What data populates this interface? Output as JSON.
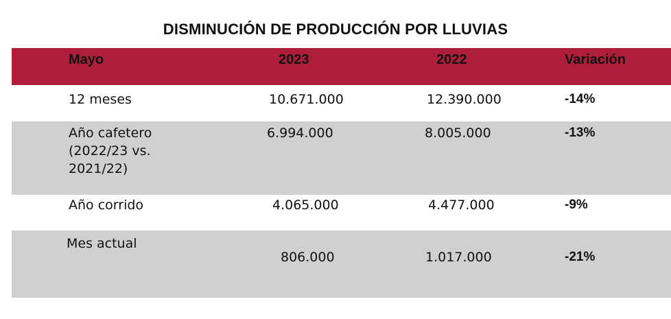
{
  "title": "DISMINUCIÓN DE PRODUCCIÓN POR LLUVIAS",
  "colors": {
    "header_bg": "#AE1E3B",
    "alt_row_bg": "#D0D0D0"
  },
  "table": {
    "headers": [
      "Mayo",
      "2023",
      "2022",
      "Variación"
    ],
    "rows": [
      {
        "label": "12 meses",
        "y2023": "10.671.000",
        "y2022": "12.390.000",
        "variation": "-14%"
      },
      {
        "label": "Año cafetero (2022/23 vs. 2021/22)",
        "y2023": "6.994.000",
        "y2022": "8.005.000",
        "variation": "-13%"
      },
      {
        "label": "Año corrido",
        "y2023": "4.065.000",
        "y2022": "4.477.000",
        "variation": "-9%"
      },
      {
        "label": "Mes actual",
        "y2023": "806.000",
        "y2022": "1.017.000",
        "variation": "-21%"
      }
    ]
  }
}
